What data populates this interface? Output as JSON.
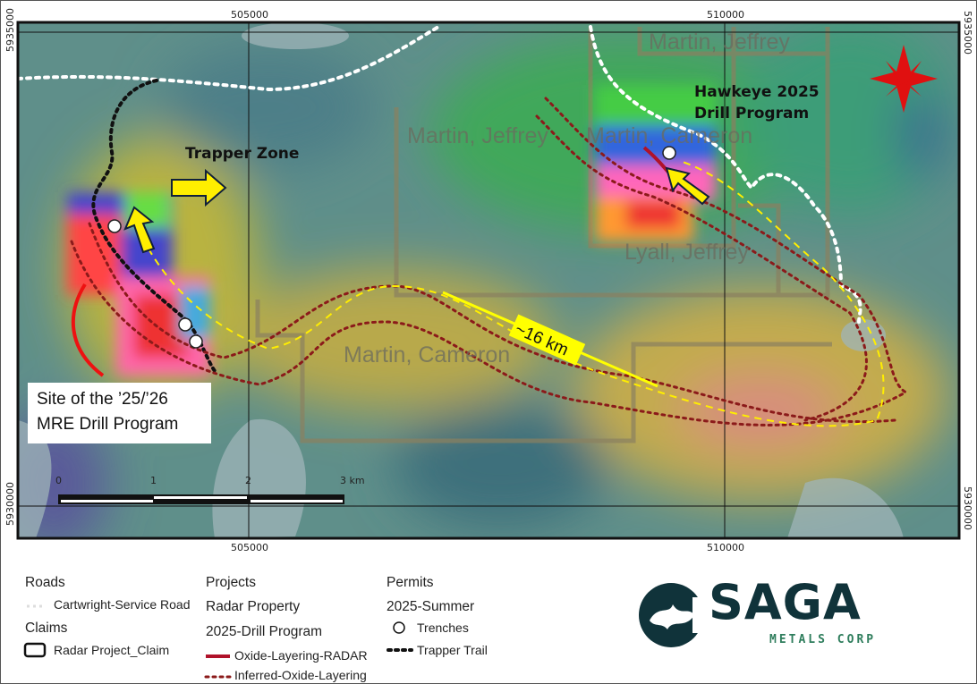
{
  "map": {
    "grid_labels_x": [
      "505000",
      "510000"
    ],
    "grid_labels_y": [
      "5935000",
      "5930000"
    ],
    "claim_labels": [
      "Martin, Jeffrey",
      "Martin, Jeffrey",
      "Martin, Cameron",
      "Lyall, Jeffrey",
      "Martin, Cameron"
    ],
    "trapper_zone": "Trapper Zone",
    "hawkeye_line1": "Hawkeye 2025",
    "hawkeye_line2": "Drill Program",
    "distance_label": "~16 km",
    "site_line1": "Site of the ’25/’26",
    "site_line2": "MRE Drill Program",
    "scale_labels": [
      "0",
      "1",
      "2",
      "3 km"
    ],
    "north_arrow_icon": "compass-star-icon",
    "colors": {
      "oxide": "#b0122a",
      "inferred": "#8b1a1a",
      "route": "#ffff00",
      "compass": "#e01010"
    }
  },
  "legend": {
    "roads_title": "Roads",
    "road_item": "Cartwright-Service Road",
    "claims_title": "Claims",
    "claim_item": "Radar Project_Claim",
    "projects_title": "Projects",
    "project_name": "Radar Property",
    "program_name": "2025-Drill Program",
    "oxide_item": "Oxide-Layering-RADAR",
    "inferred_item": "Inferred-Oxide-Layering",
    "permits_title": "Permits",
    "permit_season": "2025-Summer",
    "trenches_item": "Trenches",
    "trail_item": "Trapper Trail"
  },
  "logo": {
    "word": "SAGA",
    "sub": "METALS CORP"
  }
}
